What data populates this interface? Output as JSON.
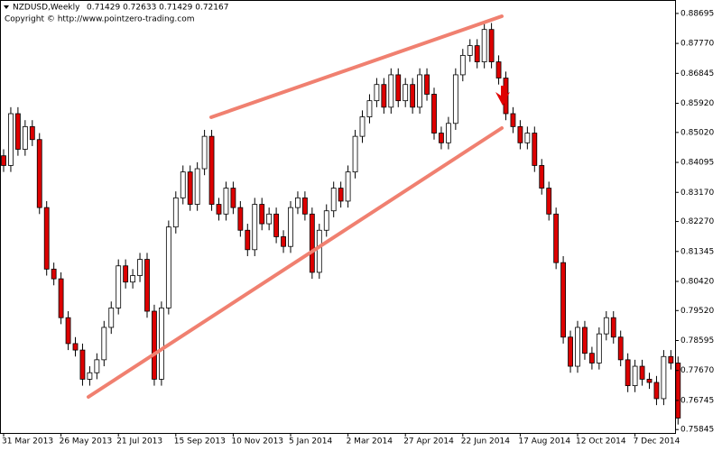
{
  "chart_data": {
    "type": "candlestick",
    "title": "NZDUSD,Weekly",
    "quote": "0.71429 0.72633 0.71429 0.72167",
    "subtitle": "Copyright © http://www.pointzero-trading.com",
    "categories": [
      "31 Mar 2013",
      null,
      null,
      null,
      null,
      null,
      null,
      null,
      "26 May 2013",
      null,
      null,
      null,
      null,
      null,
      null,
      null,
      "21 Jul 2013",
      null,
      null,
      null,
      null,
      null,
      null,
      null,
      "15 Sep 2013",
      null,
      null,
      null,
      null,
      null,
      null,
      null,
      "10 Nov 2013",
      null,
      null,
      null,
      null,
      null,
      null,
      null,
      "5 Jan 2014",
      null,
      null,
      null,
      null,
      null,
      null,
      null,
      "2 Mar 2014",
      null,
      null,
      null,
      null,
      null,
      null,
      null,
      "27 Apr 2014",
      null,
      null,
      null,
      null,
      null,
      null,
      null,
      "22 Jun 2014",
      null,
      null,
      null,
      null,
      null,
      null,
      null,
      "17 Aug 2014",
      null,
      null,
      null,
      null,
      null,
      null,
      null,
      "12 Oct 2014",
      null,
      null,
      null,
      null,
      null,
      null,
      null,
      "7 Dec 2014",
      null,
      null,
      null,
      null,
      null,
      null
    ],
    "open": [
      0.843,
      0.84,
      0.856,
      0.845,
      0.852,
      0.848,
      0.827,
      0.808,
      0.805,
      0.793,
      0.785,
      0.783,
      0.774,
      0.776,
      0.78,
      0.79,
      0.796,
      0.809,
      0.804,
      0.806,
      0.811,
      0.795,
      0.774,
      0.796,
      0.821,
      0.83,
      0.838,
      0.828,
      0.839,
      0.849,
      0.828,
      0.825,
      0.833,
      0.827,
      0.82,
      0.814,
      0.828,
      0.822,
      0.825,
      0.818,
      0.815,
      0.827,
      0.83,
      0.825,
      0.807,
      0.82,
      0.826,
      0.833,
      0.829,
      0.838,
      0.849,
      0.855,
      0.86,
      0.865,
      0.858,
      0.868,
      0.86,
      0.865,
      0.858,
      0.868,
      0.862,
      0.85,
      0.847,
      0.853,
      0.868,
      0.874,
      0.877,
      0.872,
      0.882,
      0.872,
      0.867,
      0.856,
      0.852,
      0.847,
      0.85,
      0.84,
      0.833,
      0.825,
      0.81,
      0.787,
      0.778,
      0.79,
      0.782,
      0.779,
      0.788,
      0.793,
      0.787,
      0.78,
      0.772,
      0.778,
      0.774,
      0.773,
      0.768,
      0.781,
      0.779
    ],
    "high": [
      0.845,
      0.858,
      0.858,
      0.854,
      0.854,
      0.85,
      0.829,
      0.81,
      0.807,
      0.795,
      0.787,
      0.785,
      0.778,
      0.782,
      0.792,
      0.798,
      0.811,
      0.811,
      0.808,
      0.813,
      0.813,
      0.797,
      0.798,
      0.823,
      0.832,
      0.84,
      0.84,
      0.841,
      0.851,
      0.851,
      0.83,
      0.835,
      0.835,
      0.829,
      0.822,
      0.83,
      0.83,
      0.827,
      0.827,
      0.82,
      0.829,
      0.832,
      0.832,
      0.827,
      0.822,
      0.828,
      0.835,
      0.835,
      0.84,
      0.851,
      0.857,
      0.862,
      0.867,
      0.867,
      0.87,
      0.87,
      0.867,
      0.867,
      0.87,
      0.87,
      0.864,
      0.852,
      0.855,
      0.87,
      0.876,
      0.879,
      0.879,
      0.884,
      0.884,
      0.874,
      0.869,
      0.858,
      0.854,
      0.852,
      0.852,
      0.842,
      0.835,
      0.827,
      0.812,
      0.789,
      0.792,
      0.792,
      0.784,
      0.79,
      0.795,
      0.795,
      0.789,
      0.782,
      0.78,
      0.78,
      0.776,
      0.775,
      0.783,
      0.783,
      0.781
    ],
    "low": [
      0.838,
      0.838,
      0.843,
      0.843,
      0.846,
      0.825,
      0.806,
      0.803,
      0.791,
      0.783,
      0.781,
      0.772,
      0.772,
      0.774,
      0.778,
      0.788,
      0.794,
      0.802,
      0.802,
      0.804,
      0.793,
      0.772,
      0.772,
      0.794,
      0.819,
      0.828,
      0.826,
      0.826,
      0.837,
      0.826,
      0.823,
      0.823,
      0.825,
      0.818,
      0.812,
      0.812,
      0.82,
      0.82,
      0.816,
      0.813,
      0.813,
      0.825,
      0.823,
      0.805,
      0.805,
      0.818,
      0.824,
      0.827,
      0.827,
      0.836,
      0.847,
      0.853,
      0.858,
      0.856,
      0.856,
      0.858,
      0.858,
      0.856,
      0.856,
      0.86,
      0.848,
      0.845,
      0.845,
      0.851,
      0.866,
      0.872,
      0.87,
      0.87,
      0.87,
      0.865,
      0.854,
      0.85,
      0.845,
      0.845,
      0.838,
      0.831,
      0.823,
      0.808,
      0.785,
      0.776,
      0.776,
      0.78,
      0.777,
      0.777,
      0.786,
      0.785,
      0.778,
      0.77,
      0.77,
      0.772,
      0.771,
      0.766,
      0.766,
      0.777,
      0.76
    ],
    "close": [
      0.84,
      0.856,
      0.845,
      0.852,
      0.848,
      0.827,
      0.808,
      0.805,
      0.793,
      0.785,
      0.783,
      0.774,
      0.776,
      0.78,
      0.79,
      0.796,
      0.809,
      0.804,
      0.806,
      0.811,
      0.795,
      0.774,
      0.796,
      0.821,
      0.83,
      0.838,
      0.828,
      0.839,
      0.849,
      0.828,
      0.825,
      0.833,
      0.827,
      0.82,
      0.814,
      0.828,
      0.822,
      0.825,
      0.818,
      0.815,
      0.827,
      0.83,
      0.825,
      0.807,
      0.82,
      0.826,
      0.833,
      0.829,
      0.838,
      0.849,
      0.855,
      0.86,
      0.865,
      0.858,
      0.868,
      0.86,
      0.865,
      0.858,
      0.868,
      0.862,
      0.85,
      0.847,
      0.853,
      0.868,
      0.874,
      0.877,
      0.872,
      0.882,
      0.872,
      0.867,
      0.856,
      0.852,
      0.847,
      0.85,
      0.84,
      0.833,
      0.825,
      0.81,
      0.787,
      0.778,
      0.79,
      0.782,
      0.779,
      0.788,
      0.793,
      0.787,
      0.78,
      0.772,
      0.778,
      0.774,
      0.773,
      0.768,
      0.781,
      0.779,
      0.762
    ],
    "up_color": "#ffffff",
    "down_color": "#dd0000",
    "ylim": [
      0.7574,
      0.8911
    ],
    "yticks": [
      0.88695,
      {
        "value": 0.8777,
        "label": "0.87770"
      },
      0.86845,
      {
        "value": 0.8592,
        "label": "0.85920"
      },
      {
        "value": 0.8502,
        "label": "0.85020"
      },
      0.84095,
      {
        "value": 0.8317,
        "label": "0.83170"
      },
      {
        "value": 0.8227,
        "label": "0.82270"
      },
      0.81345,
      {
        "value": 0.8042,
        "label": "0.80420"
      },
      {
        "value": 0.7952,
        "label": "0.79520"
      },
      0.78595,
      {
        "value": 0.7767,
        "label": "0.77670"
      },
      0.76745,
      0.75845
    ]
  }
}
